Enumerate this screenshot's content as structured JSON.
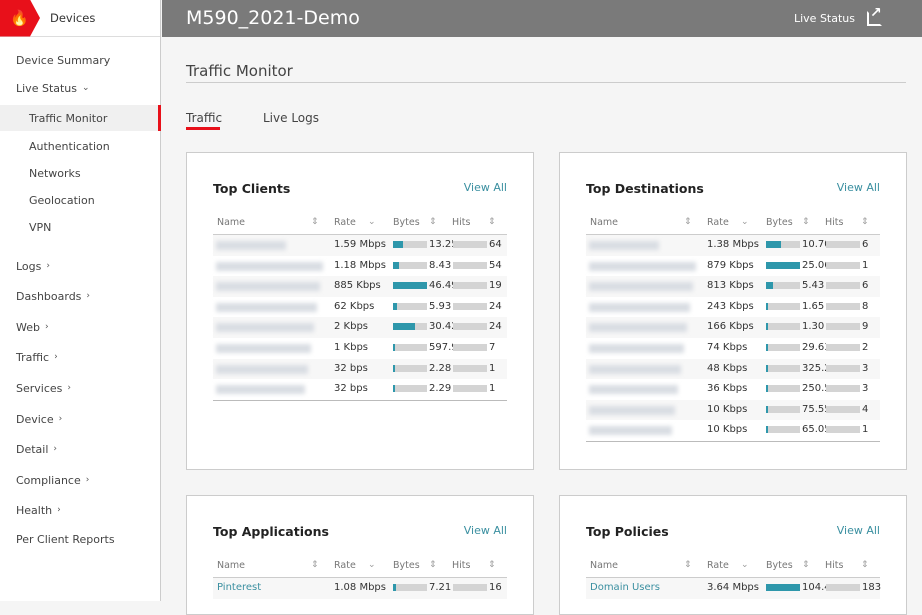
{
  "brand": {
    "label": "Devices",
    "icon": "flame-icon",
    "color": "#e8101a"
  },
  "sidebar": [
    {
      "label": "Device Summary",
      "level": 1
    },
    {
      "label": "Live Status",
      "level": 1,
      "chevron": "down"
    },
    {
      "label": "Traffic Monitor",
      "level": 2,
      "active": true
    },
    {
      "label": "Authentication",
      "level": 2
    },
    {
      "label": "Networks",
      "level": 2
    },
    {
      "label": "Geolocation",
      "level": 2
    },
    {
      "label": "VPN",
      "level": 2
    },
    {
      "label": "Logs",
      "level": 1,
      "chevron": "right"
    },
    {
      "label": "Dashboards",
      "level": 1,
      "chevron": "right"
    },
    {
      "label": "Web",
      "level": 1,
      "chevron": "right"
    },
    {
      "label": "Traffic",
      "level": 1,
      "chevron": "right"
    },
    {
      "label": "Services",
      "level": 1,
      "chevron": "right"
    },
    {
      "label": "Device",
      "level": 1,
      "chevron": "right"
    },
    {
      "label": "Detail",
      "level": 1,
      "chevron": "right"
    },
    {
      "label": "Compliance",
      "level": 1,
      "chevron": "right"
    },
    {
      "label": "Health",
      "level": 1,
      "chevron": "right"
    },
    {
      "label": "Per Client Reports",
      "level": 1
    }
  ],
  "header": {
    "title": "M590_2021-Demo",
    "live_status": "Live Status"
  },
  "page_title": "Traffic Monitor",
  "tabs": [
    {
      "label": "Traffic",
      "active": true
    },
    {
      "label": "Live Logs"
    }
  ],
  "columns": {
    "name": "Name",
    "rate": "Rate",
    "bytes": "Bytes",
    "hits": "Hits"
  },
  "cards": [
    {
      "title": "Top Clients",
      "view_all": "View All",
      "rows": [
        {
          "name": "",
          "rate": "1.59 Mbps",
          "bytes": "13.25",
          "bytes_fill": 0.28,
          "hits": "64"
        },
        {
          "name": "",
          "rate": "1.18 Mbps",
          "bytes": "8.43",
          "bytes_fill": 0.18,
          "hits": "54"
        },
        {
          "name": "",
          "rate": "885 Kbps",
          "bytes": "46.49",
          "bytes_fill": 1.0,
          "hits": "19"
        },
        {
          "name": "",
          "rate": "62 Kbps",
          "bytes": "5.93",
          "bytes_fill": 0.13,
          "hits": "24"
        },
        {
          "name": "",
          "rate": "2 Kbps",
          "bytes": "30.42",
          "bytes_fill": 0.65,
          "hits": "24"
        },
        {
          "name": "",
          "rate": "1 Kbps",
          "bytes": "597.9",
          "bytes_fill": 0.02,
          "hits": "7"
        },
        {
          "name": "",
          "rate": "32 bps",
          "bytes": "2.28",
          "bytes_fill": 0.04,
          "hits": "1"
        },
        {
          "name": "",
          "rate": "32 bps",
          "bytes": "2.29",
          "bytes_fill": 0.04,
          "hits": "1"
        }
      ]
    },
    {
      "title": "Top Destinations",
      "view_all": "View All",
      "rows": [
        {
          "name": "",
          "rate": "1.38 Mbps",
          "bytes": "10.70",
          "bytes_fill": 0.43,
          "hits": "6"
        },
        {
          "name": "",
          "rate": "879 Kbps",
          "bytes": "25.06",
          "bytes_fill": 1.0,
          "hits": "1"
        },
        {
          "name": "",
          "rate": "813 Kbps",
          "bytes": "5.43",
          "bytes_fill": 0.22,
          "hits": "6"
        },
        {
          "name": "",
          "rate": "243 Kbps",
          "bytes": "1.65",
          "bytes_fill": 0.07,
          "hits": "8"
        },
        {
          "name": "",
          "rate": "166 Kbps",
          "bytes": "1.30",
          "bytes_fill": 0.05,
          "hits": "9"
        },
        {
          "name": "",
          "rate": "74 Kbps",
          "bytes": "29.63",
          "bytes_fill": 0.02,
          "hits": "2"
        },
        {
          "name": "",
          "rate": "48 Kbps",
          "bytes": "325.2",
          "bytes_fill": 0.02,
          "hits": "3"
        },
        {
          "name": "",
          "rate": "36 Kbps",
          "bytes": "250.5",
          "bytes_fill": 0.02,
          "hits": "3"
        },
        {
          "name": "",
          "rate": "10 Kbps",
          "bytes": "75.55",
          "bytes_fill": 0.02,
          "hits": "4"
        },
        {
          "name": "",
          "rate": "10 Kbps",
          "bytes": "65.05",
          "bytes_fill": 0.02,
          "hits": "1"
        }
      ]
    },
    {
      "title": "Top Applications",
      "view_all": "View All",
      "rows": [
        {
          "name": "Pinterest",
          "rate": "1.08 Mbps",
          "bytes": "7.21",
          "bytes_fill": 0.1,
          "hits": "16"
        }
      ]
    },
    {
      "title": "Top Policies",
      "view_all": "View All",
      "rows": [
        {
          "name": "Domain Users",
          "rate": "3.64 Mbps",
          "bytes": "104.4",
          "bytes_fill": 1.0,
          "hits": "183"
        }
      ]
    }
  ]
}
